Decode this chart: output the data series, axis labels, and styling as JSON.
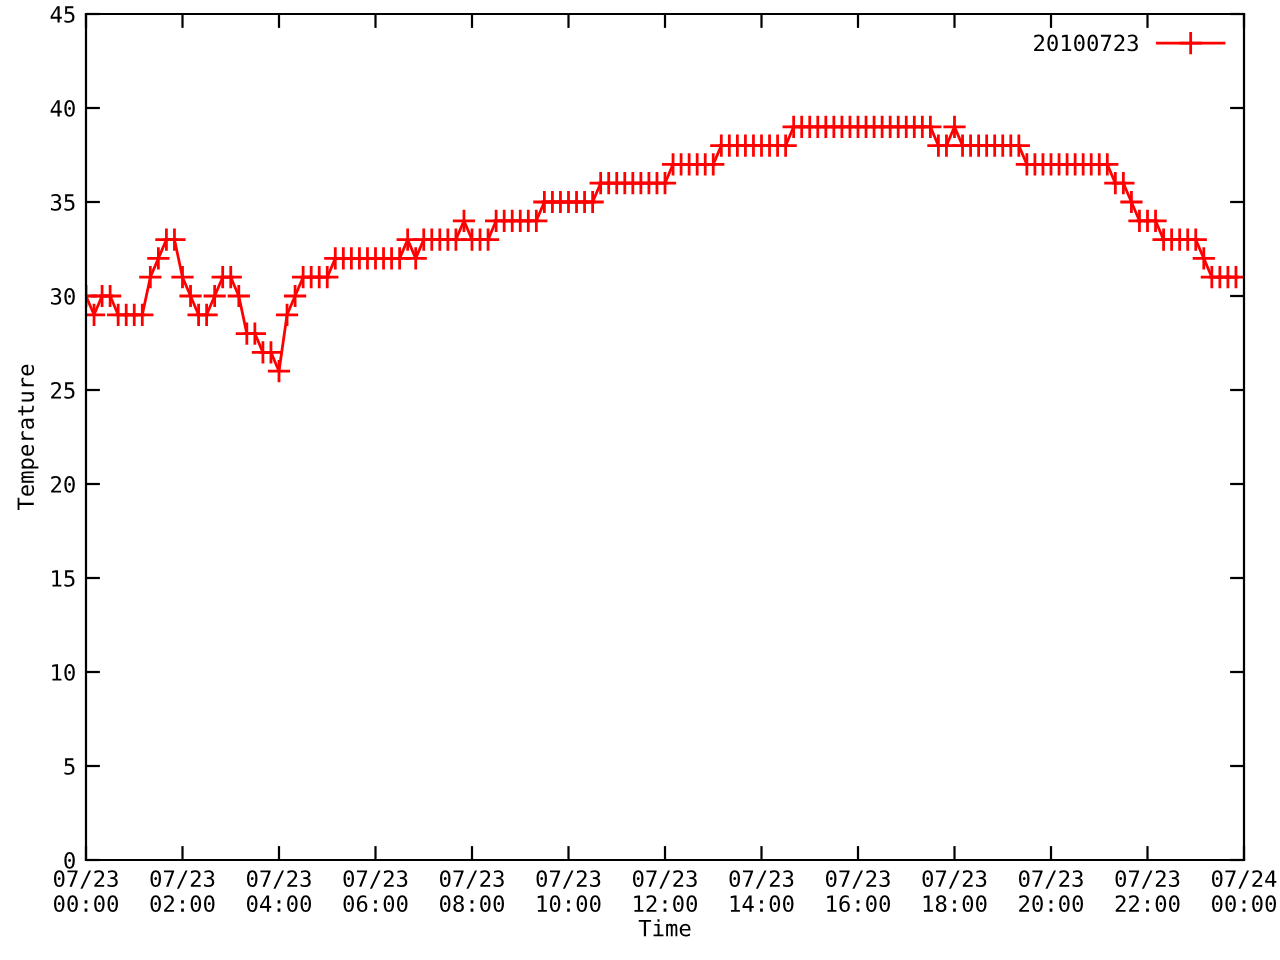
{
  "chart_data": {
    "type": "line",
    "xlabel": "Time",
    "ylabel": "Temperature",
    "legend": "top right",
    "marker": "cross",
    "line_style": "solid",
    "grid": false,
    "x": [
      "2010-07-23T00:00",
      "2010-07-23T00:10",
      "2010-07-23T00:20",
      "2010-07-23T00:30",
      "2010-07-23T00:40",
      "2010-07-23T00:50",
      "2010-07-23T01:00",
      "2010-07-23T01:10",
      "2010-07-23T01:20",
      "2010-07-23T01:30",
      "2010-07-23T01:40",
      "2010-07-23T01:50",
      "2010-07-23T02:00",
      "2010-07-23T02:10",
      "2010-07-23T02:20",
      "2010-07-23T02:30",
      "2010-07-23T02:40",
      "2010-07-23T02:50",
      "2010-07-23T03:00",
      "2010-07-23T03:10",
      "2010-07-23T03:20",
      "2010-07-23T03:30",
      "2010-07-23T03:40",
      "2010-07-23T03:50",
      "2010-07-23T04:00",
      "2010-07-23T04:10",
      "2010-07-23T04:20",
      "2010-07-23T04:30",
      "2010-07-23T04:40",
      "2010-07-23T04:50",
      "2010-07-23T05:00",
      "2010-07-23T05:10",
      "2010-07-23T05:20",
      "2010-07-23T05:30",
      "2010-07-23T05:40",
      "2010-07-23T05:50",
      "2010-07-23T06:00",
      "2010-07-23T06:10",
      "2010-07-23T06:20",
      "2010-07-23T06:30",
      "2010-07-23T06:40",
      "2010-07-23T06:50",
      "2010-07-23T07:00",
      "2010-07-23T07:10",
      "2010-07-23T07:20",
      "2010-07-23T07:30",
      "2010-07-23T07:40",
      "2010-07-23T07:50",
      "2010-07-23T08:00",
      "2010-07-23T08:10",
      "2010-07-23T08:20",
      "2010-07-23T08:30",
      "2010-07-23T08:40",
      "2010-07-23T08:50",
      "2010-07-23T09:00",
      "2010-07-23T09:10",
      "2010-07-23T09:20",
      "2010-07-23T09:30",
      "2010-07-23T09:40",
      "2010-07-23T09:50",
      "2010-07-23T10:00",
      "2010-07-23T10:10",
      "2010-07-23T10:20",
      "2010-07-23T10:30",
      "2010-07-23T10:40",
      "2010-07-23T10:50",
      "2010-07-23T11:00",
      "2010-07-23T11:10",
      "2010-07-23T11:20",
      "2010-07-23T11:30",
      "2010-07-23T11:40",
      "2010-07-23T11:50",
      "2010-07-23T12:00",
      "2010-07-23T12:10",
      "2010-07-23T12:20",
      "2010-07-23T12:30",
      "2010-07-23T12:40",
      "2010-07-23T12:50",
      "2010-07-23T13:00",
      "2010-07-23T13:10",
      "2010-07-23T13:20",
      "2010-07-23T13:30",
      "2010-07-23T13:40",
      "2010-07-23T13:50",
      "2010-07-23T14:00",
      "2010-07-23T14:10",
      "2010-07-23T14:20",
      "2010-07-23T14:30",
      "2010-07-23T14:40",
      "2010-07-23T14:50",
      "2010-07-23T15:00",
      "2010-07-23T15:10",
      "2010-07-23T15:20",
      "2010-07-23T15:30",
      "2010-07-23T15:40",
      "2010-07-23T15:50",
      "2010-07-23T16:00",
      "2010-07-23T16:10",
      "2010-07-23T16:20",
      "2010-07-23T16:30",
      "2010-07-23T16:40",
      "2010-07-23T16:50",
      "2010-07-23T17:00",
      "2010-07-23T17:10",
      "2010-07-23T17:20",
      "2010-07-23T17:30",
      "2010-07-23T17:40",
      "2010-07-23T17:50",
      "2010-07-23T18:00",
      "2010-07-23T18:10",
      "2010-07-23T18:20",
      "2010-07-23T18:30",
      "2010-07-23T18:40",
      "2010-07-23T18:50",
      "2010-07-23T19:00",
      "2010-07-23T19:10",
      "2010-07-23T19:20",
      "2010-07-23T19:30",
      "2010-07-23T19:40",
      "2010-07-23T19:50",
      "2010-07-23T20:00",
      "2010-07-23T20:10",
      "2010-07-23T20:20",
      "2010-07-23T20:30",
      "2010-07-23T20:40",
      "2010-07-23T20:50",
      "2010-07-23T21:00",
      "2010-07-23T21:10",
      "2010-07-23T21:20",
      "2010-07-23T21:30",
      "2010-07-23T21:40",
      "2010-07-23T21:50",
      "2010-07-23T22:00",
      "2010-07-23T22:10",
      "2010-07-23T22:20",
      "2010-07-23T22:30",
      "2010-07-23T22:40",
      "2010-07-23T22:50",
      "2010-07-23T23:00",
      "2010-07-23T23:10",
      "2010-07-23T23:20",
      "2010-07-23T23:30",
      "2010-07-23T23:40",
      "2010-07-23T23:50"
    ],
    "series": [
      {
        "name": "20100723",
        "color": "#ff0000",
        "values": [
          30,
          29,
          30,
          30,
          29,
          29,
          29,
          29,
          31,
          32,
          33,
          33,
          31,
          30,
          29,
          29,
          30,
          31,
          31,
          30,
          28,
          28,
          27,
          27,
          26,
          29,
          30,
          31,
          31,
          31,
          31,
          32,
          32,
          32,
          32,
          32,
          32,
          32,
          32,
          32,
          33,
          32,
          33,
          33,
          33,
          33,
          33,
          34,
          33,
          33,
          33,
          34,
          34,
          34,
          34,
          34,
          34,
          35,
          35,
          35,
          35,
          35,
          35,
          35,
          36,
          36,
          36,
          36,
          36,
          36,
          36,
          36,
          36,
          37,
          37,
          37,
          37,
          37,
          37,
          38,
          38,
          38,
          38,
          38,
          38,
          38,
          38,
          38,
          39,
          39,
          39,
          39,
          39,
          39,
          39,
          39,
          39,
          39,
          39,
          39,
          39,
          39,
          39,
          39,
          39,
          39,
          38,
          38,
          39,
          38,
          38,
          38,
          38,
          38,
          38,
          38,
          38,
          37,
          37,
          37,
          37,
          37,
          37,
          37,
          37,
          37,
          37,
          37,
          36,
          36,
          35,
          34,
          34,
          34,
          33,
          33,
          33,
          33,
          33,
          32,
          31,
          31,
          31,
          31
        ]
      }
    ],
    "xlim": [
      "2010-07-23T00:00",
      "2010-07-24T00:00"
    ],
    "xticks": [
      {
        "value": "2010-07-23T00:00",
        "label": "07/23\n00:00"
      },
      {
        "value": "2010-07-23T02:00",
        "label": "07/23\n02:00"
      },
      {
        "value": "2010-07-23T04:00",
        "label": "07/23\n04:00"
      },
      {
        "value": "2010-07-23T06:00",
        "label": "07/23\n06:00"
      },
      {
        "value": "2010-07-23T08:00",
        "label": "07/23\n08:00"
      },
      {
        "value": "2010-07-23T10:00",
        "label": "07/23\n10:00"
      },
      {
        "value": "2010-07-23T12:00",
        "label": "07/23\n12:00"
      },
      {
        "value": "2010-07-23T14:00",
        "label": "07/23\n14:00"
      },
      {
        "value": "2010-07-23T16:00",
        "label": "07/23\n16:00"
      },
      {
        "value": "2010-07-23T18:00",
        "label": "07/23\n18:00"
      },
      {
        "value": "2010-07-23T20:00",
        "label": "07/23\n20:00"
      },
      {
        "value": "2010-07-23T22:00",
        "label": "07/23\n22:00"
      },
      {
        "value": "2010-07-24T00:00",
        "label": "07/24\n00:00"
      }
    ],
    "ylim": [
      0,
      45
    ],
    "yticks": [
      0,
      5,
      10,
      15,
      20,
      25,
      30,
      35,
      40,
      45
    ]
  }
}
